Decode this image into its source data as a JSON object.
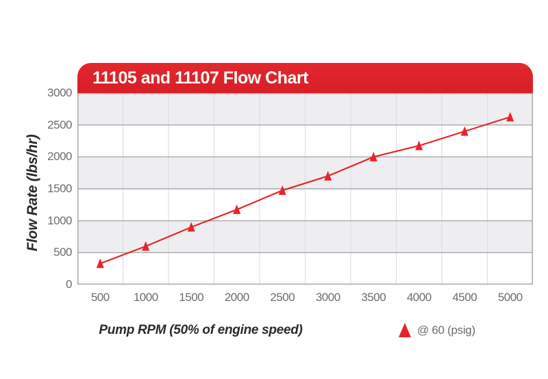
{
  "title": "11105 and 11107 Flow Chart",
  "axes": {
    "x_title": "Pump RPM (50% of engine speed)",
    "y_title": "Flow Rate (lbs/hr)"
  },
  "legend": {
    "marker": "triangle-up",
    "label": "@ 60 (psig)"
  },
  "colors": {
    "banner_red": "#dd2027",
    "series_red": "#e8242b",
    "band_gray": "#eeeef0",
    "band_white": "#ffffff",
    "grid_major": "#a9a9ab",
    "grid_minor": "#dededf",
    "tick_text": "#6b6c6f",
    "axis_title_text": "#2b292a",
    "title_text": "#ffffff"
  },
  "chart_data": {
    "type": "line",
    "title": "11105 and 11107 Flow Chart",
    "xlabel": "Pump RPM (50% of engine speed)",
    "ylabel": "Flow Rate (lbs/hr)",
    "categories": [
      500,
      1000,
      1500,
      2000,
      2500,
      3000,
      3500,
      4000,
      4500,
      5000
    ],
    "series": [
      {
        "name": "@ 60 (psig)",
        "marker": "triangle-up",
        "values": [
          330,
          600,
          900,
          1175,
          1475,
          1700,
          2000,
          2175,
          2400,
          2625
        ]
      }
    ],
    "ylim": [
      0,
      3000
    ],
    "ytick_step": 500,
    "grid": "horizontal major lines every 500; light vertical lines at category boundaries",
    "background_bands": "alternating gray/white horizontal bands per 500 units, gray at top (2500-3000)",
    "legend_position": "bottom-right"
  }
}
